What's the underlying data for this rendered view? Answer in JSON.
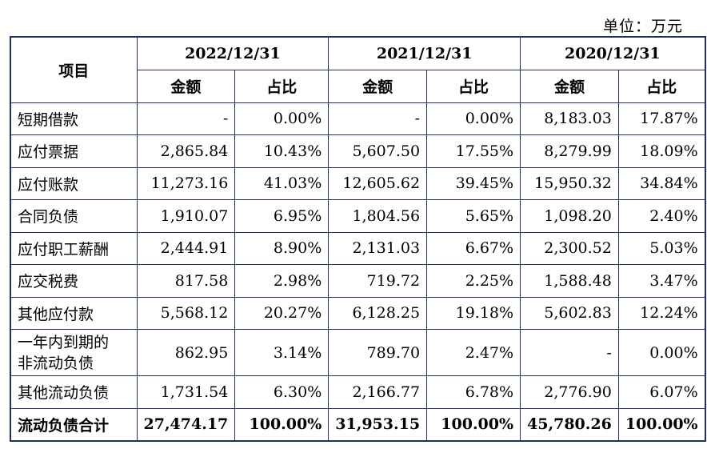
{
  "unit_label": "单位：万元",
  "header": {
    "item": "项目",
    "years": [
      "2022/12/31",
      "2021/12/31",
      "2020/12/31"
    ],
    "amount": "金额",
    "ratio": "占比"
  },
  "rows": [
    {
      "label": "短期借款",
      "v": [
        "-",
        "0.00%",
        "-",
        "0.00%",
        "8,183.03",
        "17.87%"
      ]
    },
    {
      "label": "应付票据",
      "v": [
        "2,865.84",
        "10.43%",
        "5,607.50",
        "17.55%",
        "8,279.99",
        "18.09%"
      ]
    },
    {
      "label": "应付账款",
      "v": [
        "11,273.16",
        "41.03%",
        "12,605.62",
        "39.45%",
        "15,950.32",
        "34.84%"
      ]
    },
    {
      "label": "合同负债",
      "v": [
        "1,910.07",
        "6.95%",
        "1,804.56",
        "5.65%",
        "1,098.20",
        "2.40%"
      ]
    },
    {
      "label": "应付职工薪酬",
      "v": [
        "2,444.91",
        "8.90%",
        "2,131.03",
        "6.67%",
        "2,300.52",
        "5.03%"
      ]
    },
    {
      "label": "应交税费",
      "v": [
        "817.58",
        "2.98%",
        "719.72",
        "2.25%",
        "1,588.48",
        "3.47%"
      ]
    },
    {
      "label": "其他应付款",
      "v": [
        "5,568.12",
        "20.27%",
        "6,128.25",
        "19.18%",
        "5,602.83",
        "12.24%"
      ]
    },
    {
      "label": "一年内到期的非流动负债",
      "v": [
        "862.95",
        "3.14%",
        "789.70",
        "2.47%",
        "-",
        "0.00%"
      ]
    },
    {
      "label": "其他流动负债",
      "v": [
        "1,731.54",
        "6.30%",
        "2,166.77",
        "6.78%",
        "2,776.90",
        "6.07%"
      ]
    }
  ],
  "total": {
    "label": "流动负债合计",
    "v": [
      "27,474.17",
      "100.00%",
      "31,953.15",
      "100.00%",
      "45,780.26",
      "100.00%"
    ]
  }
}
